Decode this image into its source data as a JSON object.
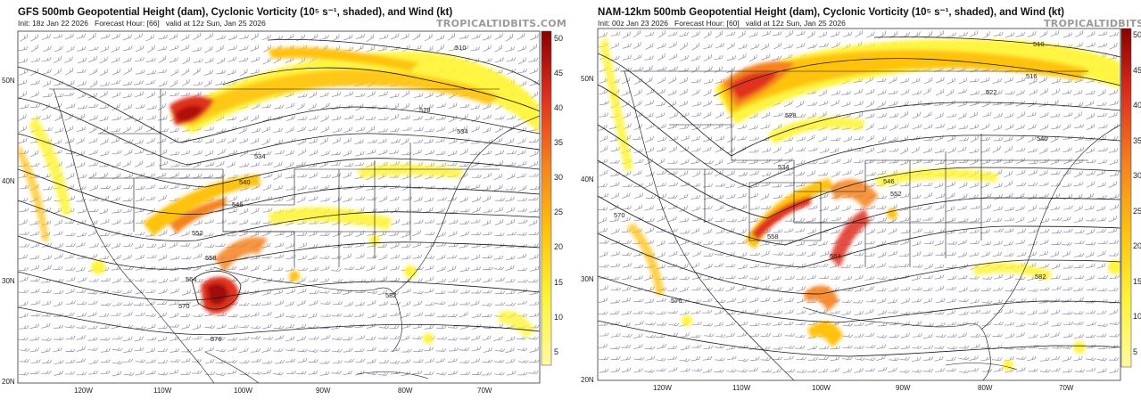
{
  "colors": {
    "light": "#fff43a",
    "mid": "#ffc20e",
    "orange": "#f5821f",
    "red": "#e0301e",
    "dark": "#8b0000",
    "contour": "#1a1a1a",
    "barb": "#8b8ba8"
  },
  "panels": [
    {
      "id": "gfs",
      "title": "GFS 500mb Geopotential Height (dam), Cyclonic Vorticity (10⁵ s⁻¹, shaded), and Wind (kt)",
      "init": "Init: 18z Jan 22 2026",
      "forecast": "Forecast Hour: [66]",
      "valid": "valid at 12z Sun, Jan 25 2026",
      "brand": "TROPICALTIDBITS.COM",
      "lat_labels": [
        "50N",
        "40N",
        "30N",
        "20N"
      ],
      "lon_labels": [
        "120W",
        "110W",
        "100W",
        "90W",
        "80W",
        "70W"
      ],
      "colorbar": [
        "50",
        "45",
        "40",
        "35",
        "30",
        "25",
        "20",
        "15",
        "10",
        "5"
      ],
      "height_labels": [
        "510",
        "528",
        "534",
        "534",
        "540",
        "546",
        "552",
        "558",
        "564",
        "570",
        "576",
        "582"
      ]
    },
    {
      "id": "nam",
      "title": "NAM-12km 500mb Geopotential Height (dam), Cyclonic Vorticity (10⁵ s⁻¹, shaded), and Wind (kt)",
      "init": "Init: 00z Jan 23 2026",
      "forecast": "Forecast Hour: [60]",
      "valid": "valid at 12z Sun, Jan 25 2026",
      "brand": "TROPICALTIDBITS.COM",
      "lat_labels": [
        "50N",
        "40N",
        "30N",
        "20N"
      ],
      "lon_labels": [
        "120W",
        "110W",
        "100W",
        "90W",
        "80W",
        "70W"
      ],
      "colorbar": [
        "50",
        "45",
        "40",
        "35",
        "30",
        "25",
        "20",
        "15",
        "10",
        "5"
      ],
      "height_labels": [
        "510",
        "516",
        "522",
        "528",
        "534",
        "540",
        "546",
        "552",
        "558",
        "564",
        "570",
        "576",
        "582"
      ]
    }
  ]
}
